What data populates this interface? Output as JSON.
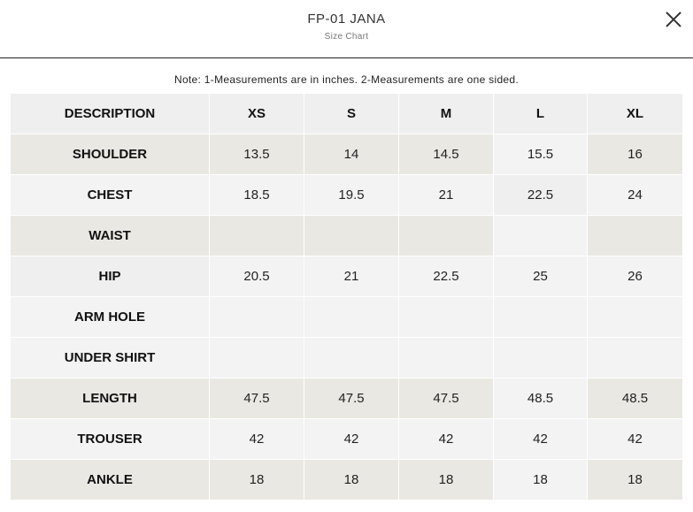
{
  "header": {
    "title": "FP-01 JANA",
    "subtitle": "Size Chart",
    "close_icon": "close-icon"
  },
  "note": "Note: 1-Measurements are in inches. 2-Measurements are one sided.",
  "table": {
    "headers": [
      "DESCRIPTION",
      "XS",
      "S",
      "M",
      "L",
      "XL"
    ],
    "rows": [
      {
        "label": "SHOULDER",
        "values": [
          "13.5",
          "14",
          "14.5",
          "15.5",
          "16"
        ]
      },
      {
        "label": "CHEST",
        "values": [
          "18.5",
          "19.5",
          "21",
          "22.5",
          "24"
        ]
      },
      {
        "label": "WAIST",
        "values": [
          "",
          "",
          "",
          "",
          ""
        ]
      },
      {
        "label": "HIP",
        "values": [
          "20.5",
          "21",
          "22.5",
          "25",
          "26"
        ]
      },
      {
        "label": "ARM HOLE",
        "values": [
          "",
          "",
          "",
          "",
          ""
        ]
      },
      {
        "label": "UNDER SHIRT",
        "values": [
          "",
          "",
          "",
          "",
          ""
        ]
      },
      {
        "label": "LENGTH",
        "values": [
          "47.5",
          "47.5",
          "47.5",
          "48.5",
          "48.5"
        ]
      },
      {
        "label": "TROUSER",
        "values": [
          "42",
          "42",
          "42",
          "42",
          "42"
        ]
      },
      {
        "label": "ANKLE",
        "values": [
          "18",
          "18",
          "18",
          "18",
          "18"
        ]
      }
    ]
  },
  "colors": {
    "header_cell": "#efefef",
    "row_light": "#f3f3f3",
    "row_beige": "#e9e8e2",
    "divider": "#222222"
  }
}
